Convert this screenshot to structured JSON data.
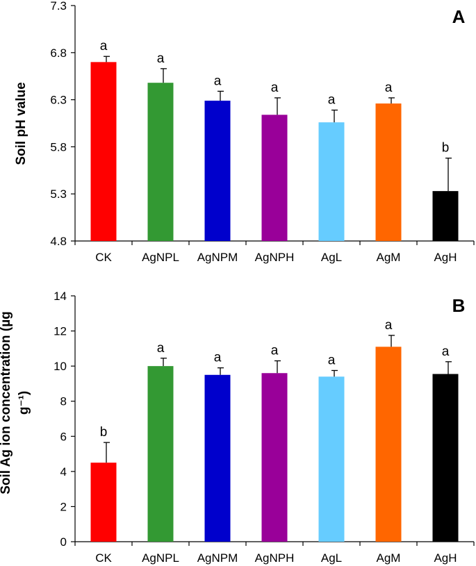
{
  "chart_data": [
    {
      "type": "bar",
      "panel_label": "A",
      "title": "",
      "xlabel": "",
      "ylabel": "Soil pH value",
      "ylim": [
        4.8,
        7.3
      ],
      "yticks": [
        "4.8",
        "5.3",
        "5.8",
        "6.3",
        "6.8",
        "7.3"
      ],
      "categories": [
        "CK",
        "AgNPL",
        "AgNPM",
        "AgNPH",
        "AgL",
        "AgM",
        "AgH"
      ],
      "values": [
        6.7,
        6.48,
        6.29,
        6.14,
        6.06,
        6.26,
        5.33
      ],
      "errors": [
        0.06,
        0.15,
        0.1,
        0.18,
        0.13,
        0.06,
        0.35
      ],
      "letters": [
        "a",
        "a",
        "a",
        "a",
        "a",
        "a",
        "b"
      ],
      "colors": [
        "#ff0000",
        "#339933",
        "#0000cc",
        "#990099",
        "#66ccff",
        "#ff6600",
        "#000000"
      ],
      "grid": false
    },
    {
      "type": "bar",
      "panel_label": "B",
      "title": "",
      "xlabel": "",
      "ylabel_lines": [
        "Soil Ag ion concentration (µg",
        "g⁻¹)"
      ],
      "ylim": [
        0,
        14
      ],
      "yticks": [
        "0",
        "2",
        "4",
        "6",
        "8",
        "10",
        "12",
        "14"
      ],
      "categories": [
        "CK",
        "AgNPL",
        "AgNPM",
        "AgNPH",
        "AgL",
        "AgM",
        "AgH"
      ],
      "values": [
        4.5,
        10.0,
        9.5,
        9.6,
        9.4,
        11.1,
        9.55
      ],
      "errors": [
        1.15,
        0.45,
        0.4,
        0.7,
        0.35,
        0.65,
        0.7
      ],
      "letters": [
        "b",
        "a",
        "a",
        "a",
        "a",
        "a",
        "a"
      ],
      "colors": [
        "#ff0000",
        "#339933",
        "#0000cc",
        "#990099",
        "#66ccff",
        "#ff6600",
        "#000000"
      ],
      "grid": false
    }
  ]
}
